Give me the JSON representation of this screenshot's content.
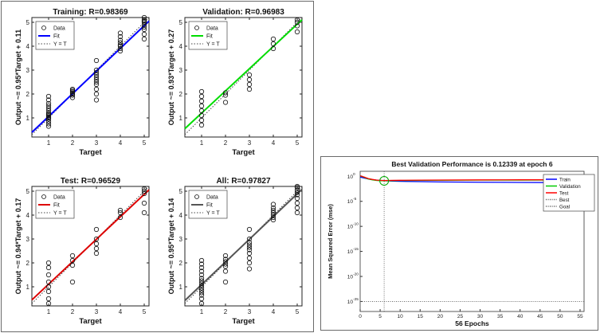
{
  "chart_data": [
    {
      "type": "scatter",
      "id": "training",
      "title": "Training: R=0.98369",
      "xlabel": "Target",
      "ylabel": "Output ~= 0.95*Target + 0.11",
      "xlim": [
        0.3,
        5.2
      ],
      "ylim": [
        0.2,
        5.2
      ],
      "xticks": [
        1,
        2,
        3,
        4,
        5
      ],
      "yticks": [
        1,
        2,
        3,
        4,
        5
      ],
      "grid": false,
      "legend_position": "top-left",
      "fit_color": "#0000ff",
      "fit": {
        "slope": 0.95,
        "intercept": 0.11
      },
      "legend": [
        "Data",
        "Fit",
        "Y = T"
      ],
      "data_points": [
        [
          1,
          0.65
        ],
        [
          1,
          0.75
        ],
        [
          1,
          0.85
        ],
        [
          1,
          0.95
        ],
        [
          1,
          1.0
        ],
        [
          1,
          1.05
        ],
        [
          1,
          1.1
        ],
        [
          1,
          1.15
        ],
        [
          1,
          1.2
        ],
        [
          1,
          1.3
        ],
        [
          1,
          1.4
        ],
        [
          1,
          1.5
        ],
        [
          1,
          1.6
        ],
        [
          1,
          1.75
        ],
        [
          1,
          1.9
        ],
        [
          2,
          1.85
        ],
        [
          2,
          1.95
        ],
        [
          2,
          2.0
        ],
        [
          2,
          2.05
        ],
        [
          2,
          2.1
        ],
        [
          2,
          2.15
        ],
        [
          2,
          2.2
        ],
        [
          3,
          1.75
        ],
        [
          3,
          2.0
        ],
        [
          3,
          2.2
        ],
        [
          3,
          2.4
        ],
        [
          3,
          2.5
        ],
        [
          3,
          2.6
        ],
        [
          3,
          2.7
        ],
        [
          3,
          2.8
        ],
        [
          3,
          2.9
        ],
        [
          3,
          3.0
        ],
        [
          3,
          3.4
        ],
        [
          4,
          3.8
        ],
        [
          4,
          3.9
        ],
        [
          4,
          4.0
        ],
        [
          4,
          4.05
        ],
        [
          4,
          4.15
        ],
        [
          4,
          4.25
        ],
        [
          4,
          4.4
        ],
        [
          4,
          4.55
        ],
        [
          5,
          4.3
        ],
        [
          5,
          4.5
        ],
        [
          5,
          4.7
        ],
        [
          5,
          4.8
        ],
        [
          5,
          4.9
        ],
        [
          5,
          5.0
        ],
        [
          5,
          5.05
        ],
        [
          5,
          5.1
        ],
        [
          5,
          5.2
        ]
      ]
    },
    {
      "type": "scatter",
      "id": "validation",
      "title": "Validation: R=0.96983",
      "xlabel": "Target",
      "ylabel": "Output ~= 0.93*Target + 0.27",
      "xlim": [
        0.3,
        5.2
      ],
      "ylim": [
        0.2,
        5.2
      ],
      "xticks": [
        1,
        2,
        3,
        4,
        5
      ],
      "yticks": [
        1,
        2,
        3,
        4,
        5
      ],
      "grid": false,
      "legend_position": "top-left",
      "fit_color": "#00dd00",
      "fit": {
        "slope": 0.93,
        "intercept": 0.27
      },
      "legend": [
        "Data",
        "Fit",
        "Y = T"
      ],
      "data_points": [
        [
          1,
          0.7
        ],
        [
          1,
          0.9
        ],
        [
          1,
          1.1
        ],
        [
          1,
          1.3
        ],
        [
          1,
          1.5
        ],
        [
          1,
          1.7
        ],
        [
          1,
          1.9
        ],
        [
          1,
          2.1
        ],
        [
          2,
          1.65
        ],
        [
          2,
          1.95
        ],
        [
          2,
          2.05
        ],
        [
          3,
          2.2
        ],
        [
          3,
          2.4
        ],
        [
          3,
          2.6
        ],
        [
          3,
          2.8
        ],
        [
          4,
          3.9
        ],
        [
          4,
          4.1
        ],
        [
          4,
          4.3
        ],
        [
          5,
          4.6
        ],
        [
          5,
          4.85
        ],
        [
          5,
          5.0
        ],
        [
          5,
          5.1
        ]
      ]
    },
    {
      "type": "scatter",
      "id": "test",
      "title": "Test: R=0.96529",
      "xlabel": "Target",
      "ylabel": "Output ~= 0.94*Target + 0.17",
      "xlim": [
        0.3,
        5.2
      ],
      "ylim": [
        0.2,
        5.2
      ],
      "xticks": [
        1,
        2,
        3,
        4,
        5
      ],
      "yticks": [
        1,
        2,
        3,
        4,
        5
      ],
      "grid": false,
      "legend_position": "top-left",
      "fit_color": "#dd0000",
      "fit": {
        "slope": 0.94,
        "intercept": 0.17
      },
      "legend": [
        "Data",
        "Fit",
        "Y = T"
      ],
      "data_points": [
        [
          1,
          0.3
        ],
        [
          1,
          0.5
        ],
        [
          1,
          0.8
        ],
        [
          1,
          1.0
        ],
        [
          1,
          1.2
        ],
        [
          1,
          1.5
        ],
        [
          1,
          1.8
        ],
        [
          1,
          2.0
        ],
        [
          2,
          1.2
        ],
        [
          2,
          1.9
        ],
        [
          2,
          2.1
        ],
        [
          2,
          2.3
        ],
        [
          3,
          2.4
        ],
        [
          3,
          2.6
        ],
        [
          3,
          2.8
        ],
        [
          3,
          3.0
        ],
        [
          3,
          3.4
        ],
        [
          4,
          3.9
        ],
        [
          4,
          4.1
        ],
        [
          4,
          4.2
        ],
        [
          5,
          4.1
        ],
        [
          5,
          4.5
        ],
        [
          5,
          4.9
        ],
        [
          5,
          5.0
        ],
        [
          5,
          5.1
        ]
      ]
    },
    {
      "type": "scatter",
      "id": "all",
      "title": "All: R=0.97827",
      "xlabel": "Target",
      "ylabel": "Output ~= 0.95*Target + 0.14",
      "xlim": [
        0.3,
        5.2
      ],
      "ylim": [
        0.2,
        5.2
      ],
      "xticks": [
        1,
        2,
        3,
        4,
        5
      ],
      "yticks": [
        1,
        2,
        3,
        4,
        5
      ],
      "grid": false,
      "legend_position": "top-left",
      "fit_color": "#555555",
      "fit": {
        "slope": 0.95,
        "intercept": 0.14
      },
      "legend": [
        "Data",
        "Fit",
        "Y = T"
      ],
      "data_points": [
        [
          1,
          0.3
        ],
        [
          1,
          0.5
        ],
        [
          1,
          0.65
        ],
        [
          1,
          0.75
        ],
        [
          1,
          0.85
        ],
        [
          1,
          0.95
        ],
        [
          1,
          1.05
        ],
        [
          1,
          1.15
        ],
        [
          1,
          1.25
        ],
        [
          1,
          1.35
        ],
        [
          1,
          1.5
        ],
        [
          1,
          1.65
        ],
        [
          1,
          1.8
        ],
        [
          1,
          1.95
        ],
        [
          1,
          2.1
        ],
        [
          2,
          1.2
        ],
        [
          2,
          1.65
        ],
        [
          2,
          1.85
        ],
        [
          2,
          1.95
        ],
        [
          2,
          2.05
        ],
        [
          2,
          2.15
        ],
        [
          2,
          2.3
        ],
        [
          3,
          1.75
        ],
        [
          3,
          2.0
        ],
        [
          3,
          2.2
        ],
        [
          3,
          2.4
        ],
        [
          3,
          2.55
        ],
        [
          3,
          2.65
        ],
        [
          3,
          2.75
        ],
        [
          3,
          2.85
        ],
        [
          3,
          3.0
        ],
        [
          3,
          3.4
        ],
        [
          4,
          3.8
        ],
        [
          4,
          3.9
        ],
        [
          4,
          4.0
        ],
        [
          4,
          4.1
        ],
        [
          4,
          4.2
        ],
        [
          4,
          4.3
        ],
        [
          4,
          4.45
        ],
        [
          5,
          4.1
        ],
        [
          5,
          4.3
        ],
        [
          5,
          4.5
        ],
        [
          5,
          4.7
        ],
        [
          5,
          4.85
        ],
        [
          5,
          4.95
        ],
        [
          5,
          5.05
        ],
        [
          5,
          5.15
        ],
        [
          5,
          5.2
        ]
      ]
    },
    {
      "type": "line",
      "id": "performance",
      "title": "Best Validation Performance is 0.12339 at epoch 6",
      "xlabel": "56 Epochs",
      "ylabel": "Mean Squared Error  (mse)",
      "yscale": "log",
      "xlim": [
        0,
        56
      ],
      "ylim_exponent": [
        -27,
        1
      ],
      "xticks": [
        0,
        5,
        10,
        15,
        20,
        25,
        30,
        35,
        40,
        45,
        50,
        55
      ],
      "ytick_exponents": [
        0,
        -5,
        -10,
        -15,
        -20,
        -25
      ],
      "grid": false,
      "legend_position": "top-right",
      "best_epoch": 6,
      "best_value": 0.12339,
      "goal_value": 1e-25,
      "series": [
        {
          "name": "Train",
          "color": "#0000ff",
          "x": [
            0,
            1,
            2,
            3,
            4,
            5,
            6,
            8,
            10,
            15,
            20,
            30,
            40,
            50,
            56
          ],
          "y": [
            0.7,
            0.45,
            0.3,
            0.22,
            0.18,
            0.15,
            0.13,
            0.11,
            0.1,
            0.085,
            0.075,
            0.065,
            0.06,
            0.055,
            0.052
          ]
        },
        {
          "name": "Validation",
          "color": "#00cc00",
          "x": [
            0,
            1,
            2,
            3,
            4,
            5,
            6,
            8,
            10,
            15,
            20,
            30,
            40,
            50,
            56
          ],
          "y": [
            1.2,
            0.6,
            0.3,
            0.2,
            0.15,
            0.13,
            0.12339,
            0.13,
            0.14,
            0.15,
            0.16,
            0.17,
            0.175,
            0.18,
            0.18
          ]
        },
        {
          "name": "Test",
          "color": "#ff0000",
          "x": [
            0,
            1,
            2,
            3,
            4,
            5,
            6,
            8,
            10,
            15,
            20,
            30,
            40,
            50,
            56
          ],
          "y": [
            1.3,
            0.7,
            0.35,
            0.24,
            0.18,
            0.15,
            0.14,
            0.15,
            0.16,
            0.17,
            0.18,
            0.19,
            0.2,
            0.2,
            0.2
          ]
        }
      ],
      "legend": [
        "Train",
        "Validation",
        "Test",
        "Best",
        "Goal"
      ]
    }
  ]
}
